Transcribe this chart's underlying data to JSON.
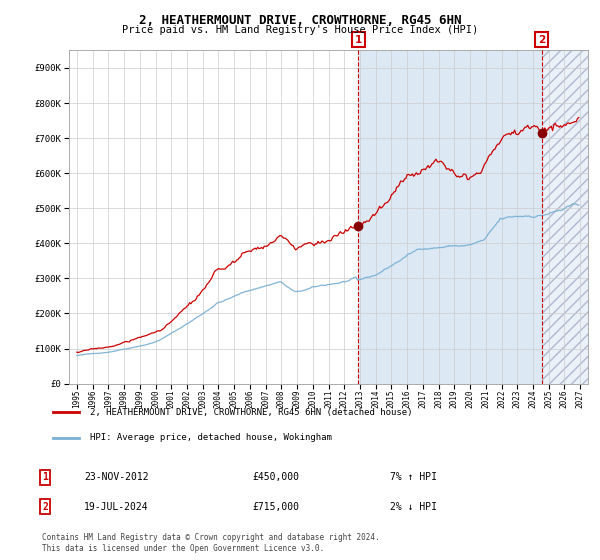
{
  "title": "2, HEATHERMOUNT DRIVE, CROWTHORNE, RG45 6HN",
  "subtitle": "Price paid vs. HM Land Registry's House Price Index (HPI)",
  "legend_line1": "2, HEATHERMOUNT DRIVE, CROWTHORNE, RG45 6HN (detached house)",
  "legend_line2": "HPI: Average price, detached house, Wokingham",
  "annotation1_date": "23-NOV-2012",
  "annotation1_price": "£450,000",
  "annotation1_hpi": "7% ↑ HPI",
  "annotation2_date": "19-JUL-2024",
  "annotation2_price": "£715,000",
  "annotation2_hpi": "2% ↓ HPI",
  "footnote": "Contains HM Land Registry data © Crown copyright and database right 2024.\nThis data is licensed under the Open Government Licence v3.0.",
  "sale1_year": 2012.9,
  "sale1_price": 450000,
  "sale2_year": 2024.55,
  "sale2_price": 715000,
  "ylim": [
    0,
    950000
  ],
  "xlim_start": 1994.5,
  "xlim_end": 2027.5,
  "bg_color": "#dce9f5",
  "plot_bg": "#ffffff",
  "red_line_color": "#cc0000",
  "blue_line_color": "#7ab0d4",
  "sale_marker_color": "#880000",
  "grid_color": "#cccccc",
  "hatch_color": "#b0b8d0"
}
